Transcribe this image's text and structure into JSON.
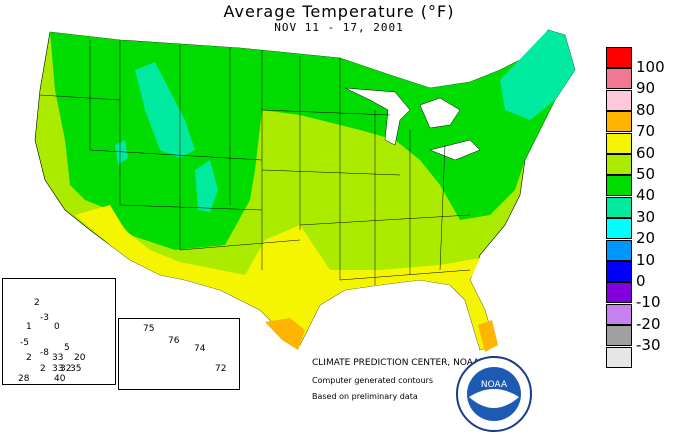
{
  "title": "Average Temperature (°F)",
  "subtitle": "NOV 11 - 17, 2001",
  "legend": [
    {
      "label": "100",
      "color": "#ff0000"
    },
    {
      "label": "90",
      "color": "#f07890"
    },
    {
      "label": "80",
      "color": "#ffc8dc"
    },
    {
      "label": "70",
      "color": "#ffb400"
    },
    {
      "label": "60",
      "color": "#f5f500"
    },
    {
      "label": "50",
      "color": "#aaeb00"
    },
    {
      "label": "40",
      "color": "#00dc00"
    },
    {
      "label": "30",
      "color": "#00eaa0"
    },
    {
      "label": "20",
      "color": "#00ffff"
    },
    {
      "label": "10",
      "color": "#0096ff"
    },
    {
      "label": "0",
      "color": "#0000ff"
    },
    {
      "label": "-10",
      "color": "#8200dc"
    },
    {
      "label": "-20",
      "color": "#c882f0"
    },
    {
      "label": "-30",
      "color": "#a0a0a0"
    },
    {
      "label": "",
      "color": "#e6e6e6"
    }
  ],
  "credits": {
    "center": "CLIMATE PREDICTION CENTER, NOAA",
    "line2": "Computer generated contours",
    "line3": "Based on preliminary data"
  },
  "noaa_logo_text": "NOAA",
  "alaska_values": [
    "2",
    "1",
    "-3",
    "0",
    "-5",
    "5",
    "2",
    "-8",
    "33",
    "20",
    "2",
    "33",
    "32",
    "35",
    "28",
    "40"
  ],
  "hawaii_values": [
    "75",
    "76",
    "74",
    "72"
  ]
}
